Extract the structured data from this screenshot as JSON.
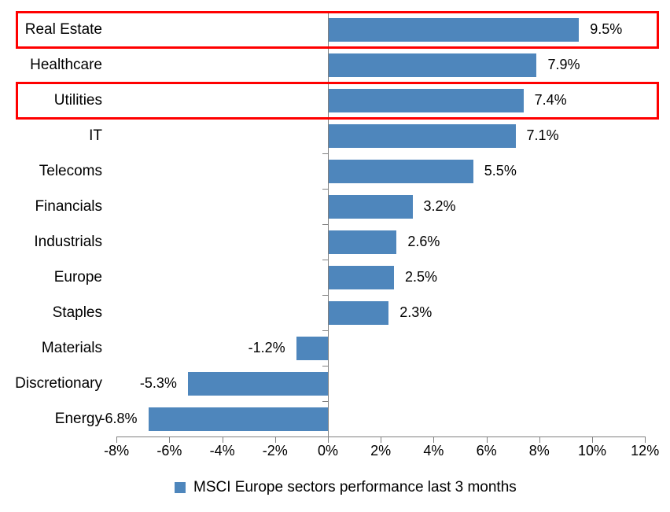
{
  "chart_data": {
    "type": "bar",
    "orientation": "horizontal",
    "categories": [
      "Real Estate",
      "Healthcare",
      "Utilities",
      "IT",
      "Telecoms",
      "Financials",
      "Industrials",
      "Europe",
      "Staples",
      "Materials",
      "Discretionary",
      "Energy"
    ],
    "values": [
      9.5,
      7.9,
      7.4,
      7.1,
      5.5,
      3.2,
      2.6,
      2.5,
      2.3,
      -1.2,
      -5.3,
      -6.8
    ],
    "value_labels": [
      "9.5%",
      "7.9%",
      "7.4%",
      "7.1%",
      "5.5%",
      "3.2%",
      "2.6%",
      "2.5%",
      "2.3%",
      "-1.2%",
      "-5.3%",
      "-6.8%"
    ],
    "xlim": [
      -8,
      12
    ],
    "x_tick_values": [
      -8,
      -6,
      -4,
      -2,
      0,
      2,
      4,
      6,
      8,
      10,
      12
    ],
    "x_tick_labels": [
      "-8%",
      "-6%",
      "-4%",
      "-2%",
      "0%",
      "2%",
      "4%",
      "6%",
      "8%",
      "10%",
      "12%"
    ],
    "legend": "MSCI Europe sectors performance last 3 months",
    "legend_position": "bottom",
    "grid": false,
    "bar_color": "#4E86BC",
    "axis_color": "#808080",
    "text_color": "#000000",
    "highlight_color": "#FF0000",
    "highlighted_categories": [
      "Real Estate",
      "Utilities"
    ]
  }
}
